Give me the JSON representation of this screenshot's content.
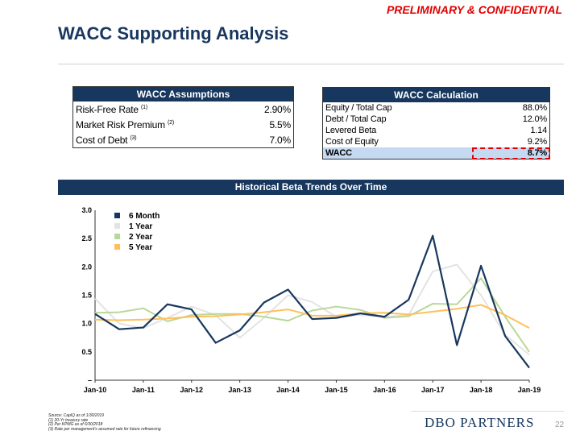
{
  "header": {
    "confidential": "PRELIMINARY & CONFIDENTIAL",
    "title": "WACC Supporting Analysis"
  },
  "assumptions": {
    "title": "WACC Assumptions",
    "rows": [
      {
        "label": "Risk-Free Rate",
        "note": "(1)",
        "value": "2.90%"
      },
      {
        "label": "Market Risk Premium",
        "note": "(2)",
        "value": "5.5%"
      },
      {
        "label": "Cost of Debt",
        "note": "(3)",
        "value": "7.0%"
      }
    ]
  },
  "calculation": {
    "title": "WACC Calculation",
    "rows": [
      {
        "label": "Equity / Total Cap",
        "value": "88.0%"
      },
      {
        "label": "Debt / Total Cap",
        "value": "12.0%"
      },
      {
        "label": "Levered Beta",
        "value": "1.14"
      },
      {
        "label": "Cost of Equity",
        "value": "9.2%"
      }
    ],
    "total": {
      "label": "WACC",
      "value": "8.7%"
    }
  },
  "chart_banner": "Historical Beta Trends Over Time",
  "chart_data": {
    "type": "line",
    "title": "Historical Beta Trends Over Time",
    "ylim": [
      0,
      3
    ],
    "yticks": [
      {
        "v": 0,
        "label": "–"
      },
      {
        "v": 0.5,
        "label": "0.5"
      },
      {
        "v": 1,
        "label": "1.0"
      },
      {
        "v": 1.5,
        "label": "1.5"
      },
      {
        "v": 2,
        "label": "2.0"
      },
      {
        "v": 2.5,
        "label": "2.5"
      },
      {
        "v": 3,
        "label": "3.0"
      }
    ],
    "xticks": [
      "Jan-10",
      "Jan-11",
      "Jan-12",
      "Jan-13",
      "Jan-14",
      "Jan-15",
      "Jan-16",
      "Jan-17",
      "Jan-18",
      "Jan-19"
    ],
    "legend_position": "top-left",
    "series": [
      {
        "name": "6 Month",
        "color": "#17375e",
        "values": [
          1.17,
          0.9,
          0.93,
          1.34,
          1.25,
          0.66,
          0.88,
          1.37,
          1.6,
          1.08,
          1.1,
          1.18,
          1.12,
          1.42,
          2.55,
          0.62,
          2.02,
          0.78,
          0.22
        ]
      },
      {
        "name": "1 Year",
        "color": "#e3e3e3",
        "values": [
          1.44,
          1.0,
          0.92,
          1.1,
          1.3,
          1.15,
          0.75,
          1.1,
          1.5,
          1.38,
          1.12,
          1.15,
          1.12,
          1.15,
          1.92,
          2.04,
          1.5,
          0.8,
          0.45
        ]
      },
      {
        "name": "2 Year",
        "color": "#b8d89a",
        "values": [
          1.19,
          1.2,
          1.27,
          1.04,
          1.15,
          1.17,
          1.17,
          1.12,
          1.05,
          1.23,
          1.3,
          1.24,
          1.1,
          1.13,
          1.35,
          1.34,
          1.8,
          1.12,
          0.5
        ]
      },
      {
        "name": "5 Year",
        "color": "#ffc05a",
        "values": [
          1.07,
          1.06,
          1.07,
          1.09,
          1.12,
          1.13,
          1.16,
          1.2,
          1.25,
          1.14,
          1.14,
          1.18,
          1.19,
          1.16,
          1.21,
          1.26,
          1.33,
          1.15,
          0.92
        ]
      }
    ]
  },
  "footer": {
    "notes": [
      "Source: CapIQ as of 1/30/2019",
      "(1)     20-Yr treasury rate",
      "(2)     Per KPMG as of 6/30/2018",
      "(3)     Rate per management's assumed rate for future refinancing"
    ],
    "logo": "DBO PARTNERS",
    "page": "22"
  }
}
